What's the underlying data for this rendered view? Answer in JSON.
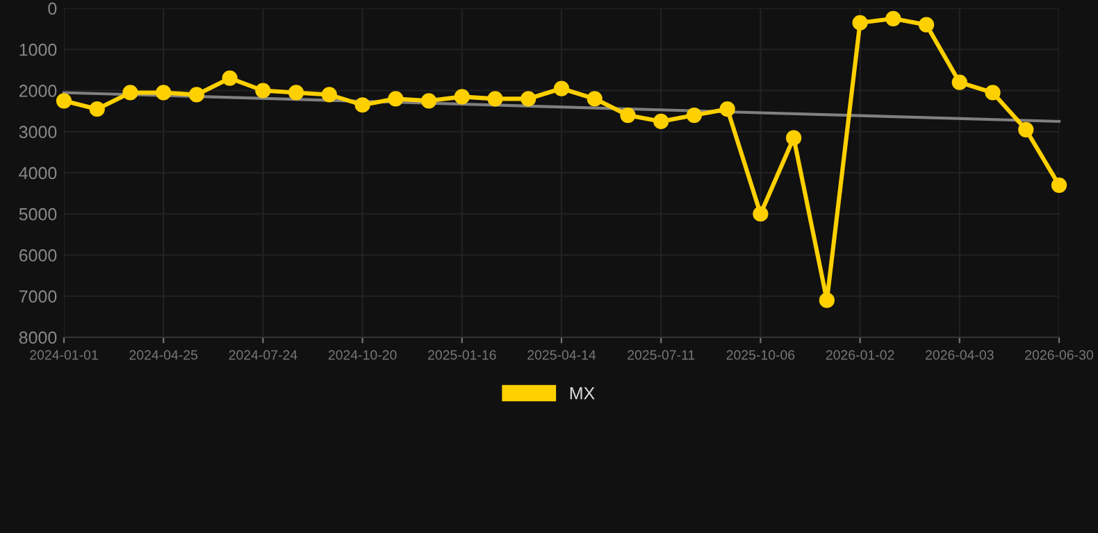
{
  "chart_data": {
    "type": "line",
    "categories": [
      "2024-01-01",
      null,
      null,
      "2024-04-25",
      null,
      null,
      "2024-07-24",
      null,
      null,
      "2024-10-20",
      null,
      null,
      "2025-01-16",
      null,
      null,
      "2025-04-14",
      null,
      null,
      "2025-07-11",
      null,
      null,
      "2025-10-06",
      null,
      null,
      "2026-01-02",
      null,
      null,
      "2026-04-03",
      null,
      null,
      "2026-06-30"
    ],
    "series": [
      {
        "name": "MX",
        "color": "#ffd000",
        "marker": "circle",
        "values": [
          2250,
          2450,
          2050,
          2050,
          2100,
          1700,
          2000,
          2050,
          2100,
          2350,
          2200,
          2250,
          2150,
          2200,
          2200,
          1950,
          2200,
          2600,
          2750,
          2600,
          2450,
          5000,
          3150,
          7100,
          350,
          250,
          400,
          1800,
          2050,
          2950,
          4300
        ]
      },
      {
        "type": "line",
        "color": "#808080",
        "marker": "none",
        "values": [
          2050,
          null,
          null,
          null,
          null,
          null,
          null,
          null,
          null,
          null,
          null,
          null,
          null,
          null,
          null,
          null,
          null,
          null,
          null,
          null,
          null,
          null,
          null,
          null,
          null,
          null,
          null,
          null,
          null,
          null,
          2750
        ]
      }
    ],
    "ylim": [
      8000,
      0
    ],
    "yticks": [
      0,
      1000,
      2000,
      3000,
      4000,
      5000,
      6000,
      7000,
      8000
    ],
    "grid": true,
    "legend": "bottom"
  }
}
